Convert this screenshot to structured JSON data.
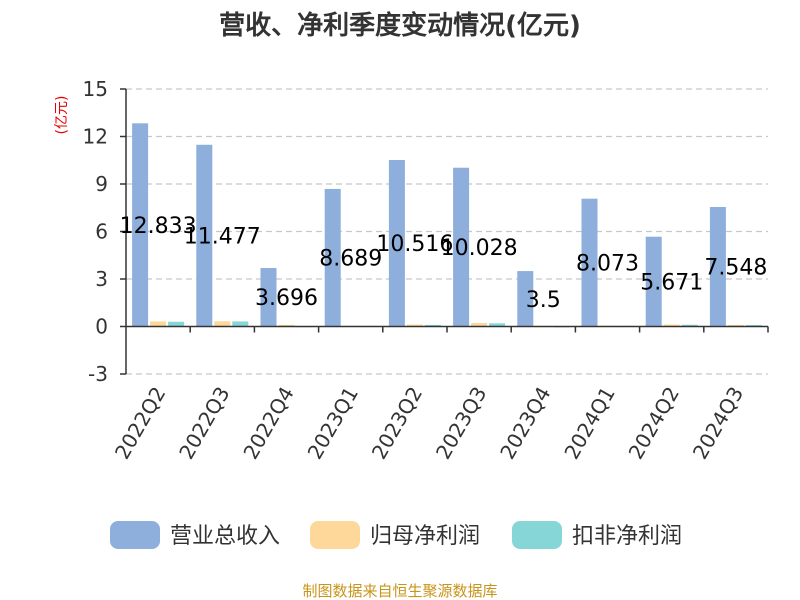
{
  "chart_data": {
    "type": "bar",
    "title": "营收、净利季度变动情况(亿元)",
    "unit_label": "(亿元)",
    "categories": [
      "2022Q2",
      "2022Q3",
      "2022Q4",
      "2023Q1",
      "2023Q2",
      "2023Q3",
      "2023Q4",
      "2024Q1",
      "2024Q2",
      "2024Q3"
    ],
    "series": [
      {
        "name": "营业总收入",
        "color": "#8eaedc",
        "values": [
          12.833,
          11.477,
          3.696,
          8.689,
          10.516,
          10.028,
          3.5,
          8.073,
          5.671,
          7.548
        ],
        "show_labels": true
      },
      {
        "name": "归母净利润",
        "color": "#fdd89a",
        "values": [
          0.32,
          0.33,
          0.1,
          0.05,
          0.12,
          0.22,
          0.02,
          0.05,
          0.12,
          0.1
        ],
        "show_labels": false
      },
      {
        "name": "扣非净利润",
        "color": "#86d6d8",
        "values": [
          0.3,
          0.32,
          0.02,
          0.04,
          0.1,
          0.2,
          0.01,
          0.04,
          0.11,
          0.09
        ],
        "show_labels": false
      }
    ],
    "ylim": [
      -3,
      15
    ],
    "yticks": [
      15,
      12,
      9,
      6,
      3,
      0,
      -3
    ],
    "grid": true,
    "legend_position": "bottom",
    "source": "制图数据来自恒生聚源数据库"
  }
}
